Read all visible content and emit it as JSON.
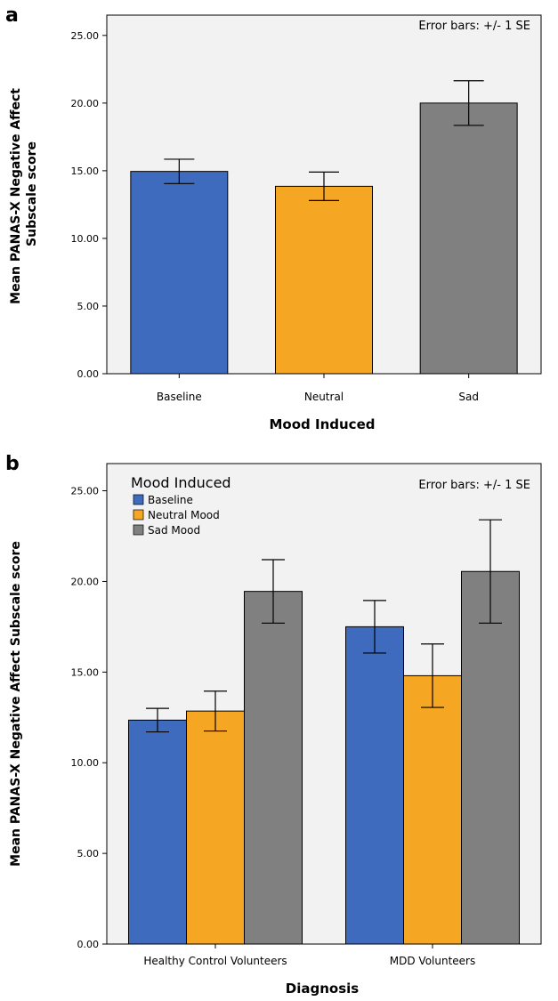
{
  "colors": {
    "baseline": "#3f6bbf",
    "neutral": "#f5a623",
    "sad": "#808080",
    "plot_bg": "#f2f2f2"
  },
  "chart_data": [
    {
      "panel": "a",
      "type": "bar",
      "xlabel": "Mood Induced",
      "ylabel": "Mean PANAS-X Negative Affect Subscale score",
      "error_note": "Error bars: +/- 1 SE",
      "ylim": [
        0,
        26.5
      ],
      "yticks": [
        "0.00",
        "5.00",
        "10.00",
        "15.00",
        "20.00",
        "25.00"
      ],
      "categories": [
        "Baseline",
        "Neutral",
        "Sad"
      ],
      "values": [
        14.95,
        13.85,
        20.0
      ],
      "errors": [
        0.9,
        1.05,
        1.65
      ],
      "bar_colors": [
        "#3f6bbf",
        "#f5a623",
        "#808080"
      ]
    },
    {
      "panel": "b",
      "type": "bar",
      "xlabel": "Diagnosis",
      "ylabel": "Mean PANAS-X Negative Affect Subscale score",
      "error_note": "Error bars: +/- 1 SE",
      "legend_title": "Mood Induced",
      "legend_position": "top-left",
      "ylim": [
        0,
        26.5
      ],
      "yticks": [
        "0.00",
        "5.00",
        "10.00",
        "15.00",
        "20.00",
        "25.00"
      ],
      "categories": [
        "Healthy Control Volunteers",
        "MDD Volunteers"
      ],
      "series": [
        {
          "name": "Baseline",
          "values": [
            12.35,
            17.5
          ],
          "errors": [
            0.65,
            1.45
          ],
          "color": "#3f6bbf"
        },
        {
          "name": "Neutral Mood",
          "values": [
            12.85,
            14.8
          ],
          "errors": [
            1.1,
            1.75
          ],
          "color": "#f5a623"
        },
        {
          "name": "Sad Mood",
          "values": [
            19.45,
            20.55
          ],
          "errors": [
            1.75,
            2.85
          ],
          "color": "#808080"
        }
      ]
    }
  ]
}
